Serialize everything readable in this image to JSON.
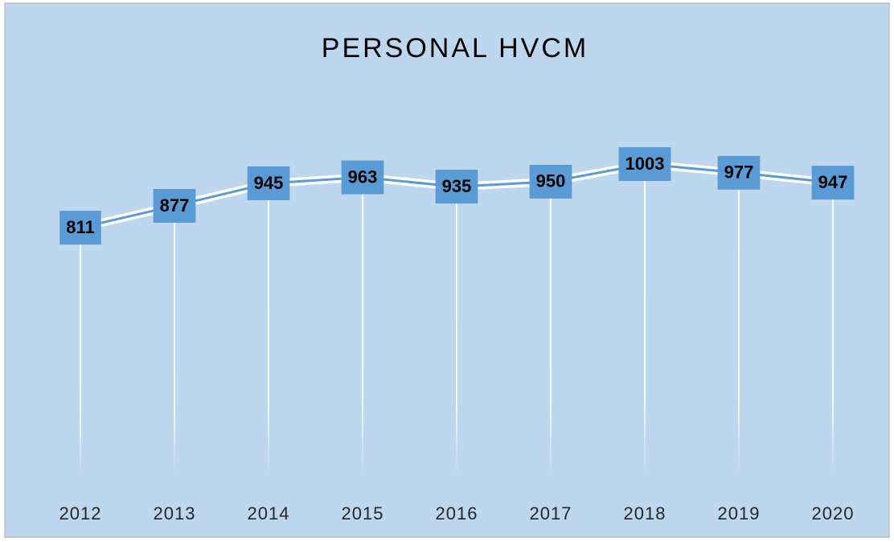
{
  "chart_data": {
    "type": "line",
    "title": "PERSONAL HVCM",
    "categories": [
      "2012",
      "2013",
      "2014",
      "2015",
      "2016",
      "2017",
      "2018",
      "2019",
      "2020"
    ],
    "values": [
      811,
      877,
      945,
      963,
      935,
      950,
      1003,
      977,
      947
    ],
    "color": "#5b9bd5",
    "ylim": [
      0,
      1200
    ],
    "data_labels": true,
    "drop_lines": true
  }
}
